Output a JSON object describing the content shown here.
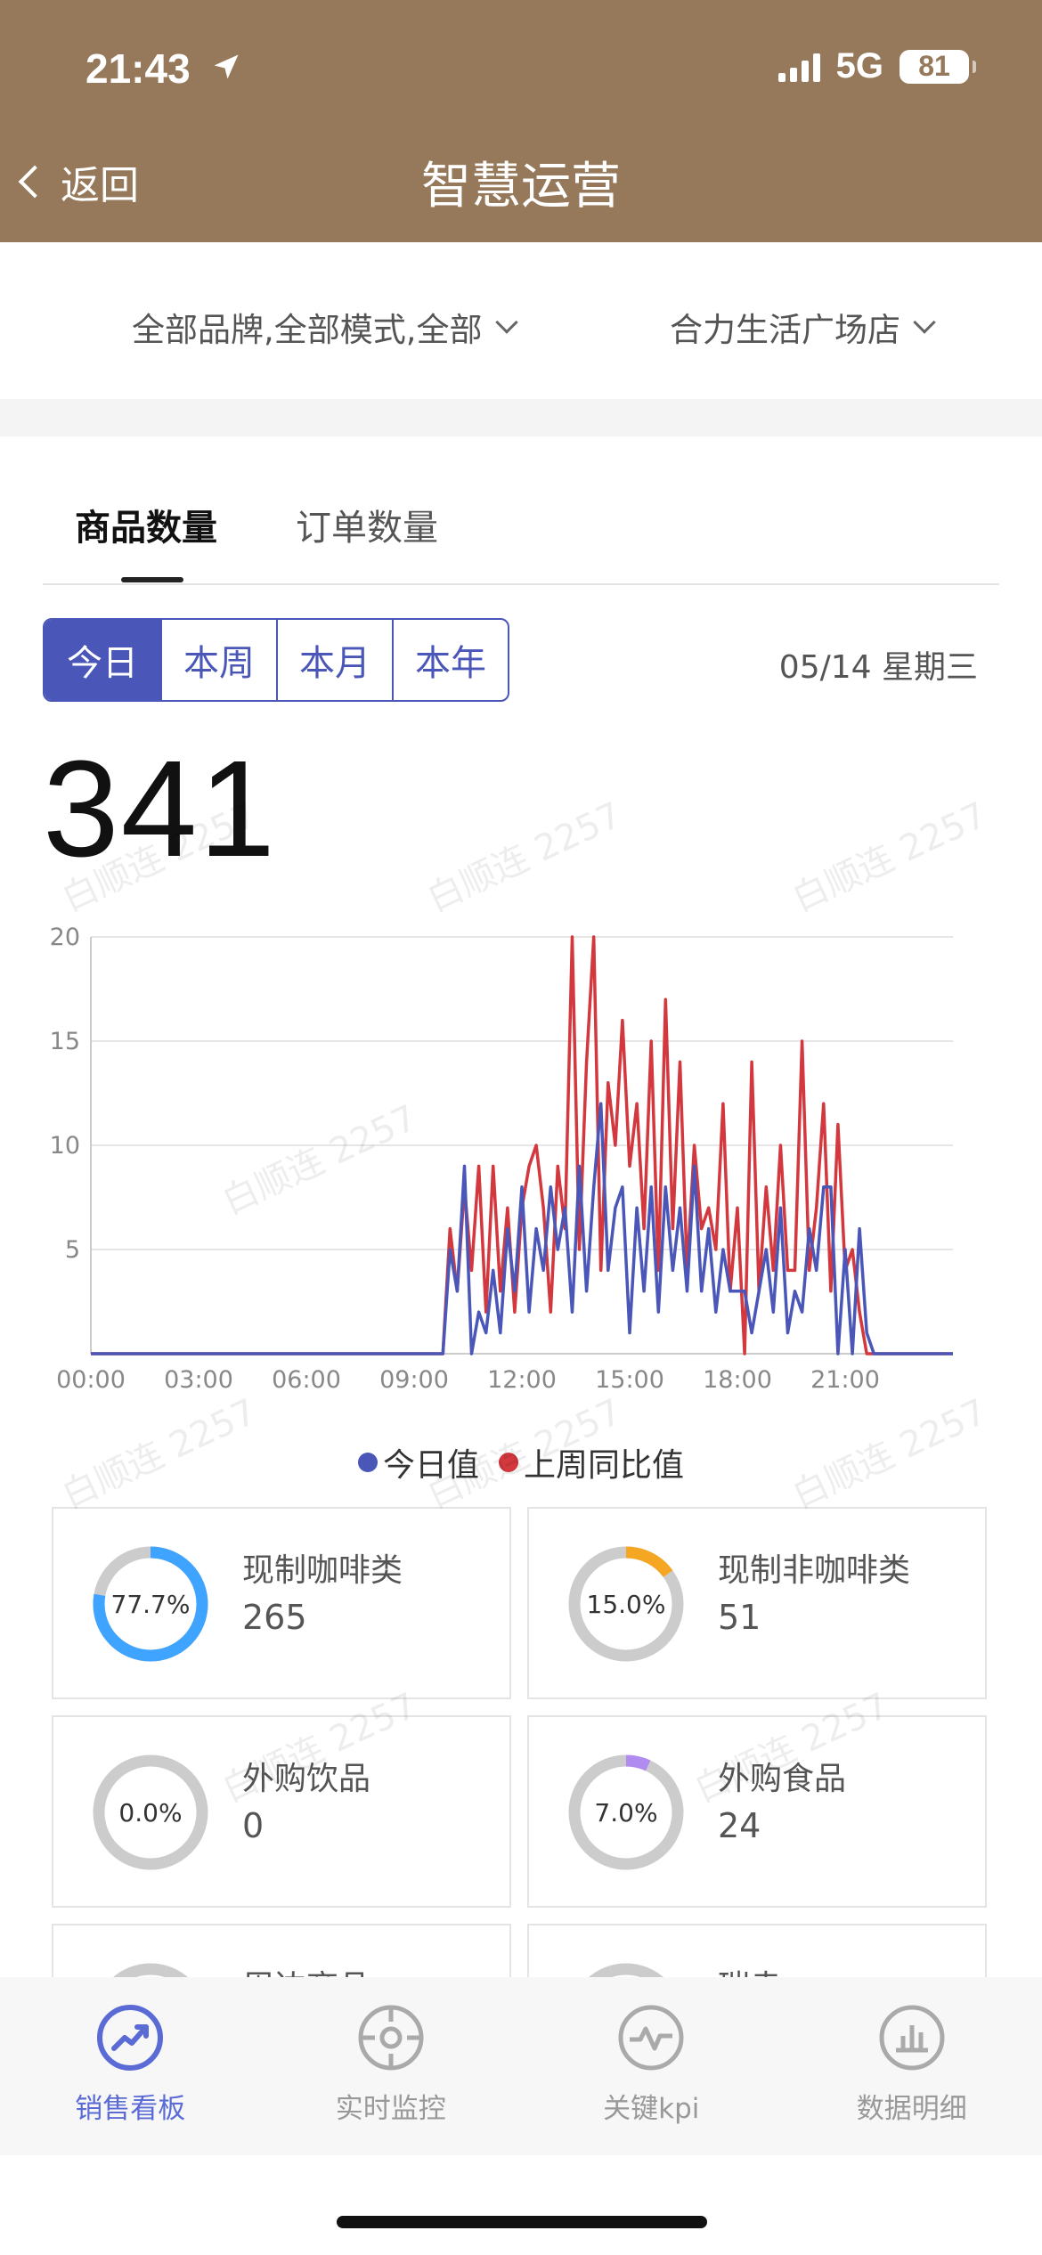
{
  "status_bar": {
    "time": "21:43",
    "network": "5G",
    "battery": "81"
  },
  "header": {
    "back_label": "返回",
    "title": "智慧运营"
  },
  "filters": {
    "brand_mode": "全部品牌,全部模式,全部",
    "store": "合力生活广场店"
  },
  "tabs": [
    {
      "label": "商品数量",
      "active": true
    },
    {
      "label": "订单数量",
      "active": false
    }
  ],
  "periods": [
    "今日",
    "本周",
    "本月",
    "本年"
  ],
  "selected_period": "今日",
  "date_label": "05/14 星期三",
  "total": "341",
  "legend": {
    "today": "今日值",
    "last_week": "上周同比值"
  },
  "watermark": "白顺连 2257",
  "colors": {
    "header": "#96785a",
    "accent": "#4a57b8",
    "today": "#4a57b8",
    "last_week": "#d2383e",
    "coffee": "#3fa4ff",
    "non_coffee": "#f5a623",
    "food": "#b08cf0",
    "ring_bg": "#cccccc"
  },
  "chart_data": {
    "type": "line",
    "x_ticks": [
      "00:00",
      "03:00",
      "06:00",
      "09:00",
      "12:00",
      "15:00",
      "18:00",
      "21:00"
    ],
    "y_ticks": [
      5,
      10,
      15,
      20
    ],
    "ylim": [
      0,
      20
    ],
    "x_range_hours": [
      0,
      24
    ],
    "series": [
      {
        "name": "今日值",
        "color": "#4a57b8",
        "points": [
          [
            0,
            0
          ],
          [
            9.8,
            0
          ],
          [
            10.0,
            5
          ],
          [
            10.2,
            3
          ],
          [
            10.4,
            9
          ],
          [
            10.6,
            0
          ],
          [
            10.8,
            2
          ],
          [
            11.0,
            1
          ],
          [
            11.2,
            4
          ],
          [
            11.4,
            1
          ],
          [
            11.6,
            6
          ],
          [
            11.8,
            3
          ],
          [
            12.0,
            8
          ],
          [
            12.2,
            2
          ],
          [
            12.4,
            6
          ],
          [
            12.6,
            4
          ],
          [
            12.8,
            8
          ],
          [
            13.0,
            5
          ],
          [
            13.2,
            7
          ],
          [
            13.4,
            2
          ],
          [
            13.6,
            9
          ],
          [
            13.8,
            3
          ],
          [
            14.0,
            8
          ],
          [
            14.2,
            12
          ],
          [
            14.4,
            4
          ],
          [
            14.6,
            7
          ],
          [
            14.8,
            8
          ],
          [
            15.0,
            1
          ],
          [
            15.2,
            7
          ],
          [
            15.4,
            3
          ],
          [
            15.6,
            8
          ],
          [
            15.8,
            2
          ],
          [
            16.0,
            8
          ],
          [
            16.2,
            4
          ],
          [
            16.4,
            7
          ],
          [
            16.6,
            3
          ],
          [
            16.8,
            9
          ],
          [
            17.0,
            3
          ],
          [
            17.2,
            6
          ],
          [
            17.4,
            2
          ],
          [
            17.6,
            5
          ],
          [
            17.8,
            3
          ],
          [
            18.0,
            3
          ],
          [
            18.2,
            3
          ],
          [
            18.4,
            1
          ],
          [
            18.6,
            3
          ],
          [
            18.8,
            5
          ],
          [
            19.0,
            2
          ],
          [
            19.2,
            7
          ],
          [
            19.4,
            1
          ],
          [
            19.6,
            3
          ],
          [
            19.8,
            2
          ],
          [
            20.0,
            6
          ],
          [
            20.2,
            4
          ],
          [
            20.4,
            8
          ],
          [
            20.6,
            8
          ],
          [
            20.8,
            0
          ],
          [
            21.0,
            5
          ],
          [
            21.2,
            0
          ],
          [
            21.4,
            6
          ],
          [
            21.6,
            1
          ],
          [
            21.8,
            0
          ],
          [
            24,
            0
          ]
        ]
      },
      {
        "name": "上周同比值",
        "color": "#d2383e",
        "points": [
          [
            0,
            0
          ],
          [
            9.8,
            0
          ],
          [
            10.0,
            6
          ],
          [
            10.2,
            3
          ],
          [
            10.4,
            8
          ],
          [
            10.6,
            4
          ],
          [
            10.8,
            9
          ],
          [
            11.0,
            2
          ],
          [
            11.2,
            9
          ],
          [
            11.4,
            3
          ],
          [
            11.6,
            7
          ],
          [
            11.8,
            2
          ],
          [
            12.0,
            7
          ],
          [
            12.2,
            9
          ],
          [
            12.4,
            10
          ],
          [
            12.6,
            7
          ],
          [
            12.8,
            2
          ],
          [
            13.0,
            9
          ],
          [
            13.2,
            6
          ],
          [
            13.4,
            20
          ],
          [
            13.6,
            5
          ],
          [
            13.8,
            14
          ],
          [
            14.0,
            20
          ],
          [
            14.2,
            4
          ],
          [
            14.4,
            13
          ],
          [
            14.6,
            10
          ],
          [
            14.8,
            16
          ],
          [
            15.0,
            9
          ],
          [
            15.2,
            12
          ],
          [
            15.4,
            6
          ],
          [
            15.6,
            15
          ],
          [
            15.8,
            4
          ],
          [
            16.0,
            17
          ],
          [
            16.2,
            6
          ],
          [
            16.4,
            14
          ],
          [
            16.6,
            4
          ],
          [
            16.8,
            10
          ],
          [
            17.0,
            6
          ],
          [
            17.2,
            7
          ],
          [
            17.4,
            5
          ],
          [
            17.6,
            12
          ],
          [
            17.8,
            3
          ],
          [
            18.0,
            7
          ],
          [
            18.2,
            0
          ],
          [
            18.4,
            14
          ],
          [
            18.6,
            3
          ],
          [
            18.8,
            8
          ],
          [
            19.0,
            4
          ],
          [
            19.2,
            10
          ],
          [
            19.4,
            4
          ],
          [
            19.6,
            4
          ],
          [
            19.8,
            15
          ],
          [
            20.0,
            4
          ],
          [
            20.2,
            7
          ],
          [
            20.4,
            12
          ],
          [
            20.6,
            3
          ],
          [
            20.8,
            11
          ],
          [
            21.0,
            4
          ],
          [
            21.2,
            5
          ],
          [
            21.4,
            2
          ],
          [
            21.6,
            0
          ],
          [
            24,
            0
          ]
        ]
      }
    ]
  },
  "categories": [
    {
      "name": "现制咖啡类",
      "value": "265",
      "percent_label": "77.7%",
      "percent": 77.7,
      "color": "#3fa4ff"
    },
    {
      "name": "现制非咖啡类",
      "value": "51",
      "percent_label": "15.0%",
      "percent": 15.0,
      "color": "#f5a623"
    },
    {
      "name": "外购饮品",
      "value": "0",
      "percent_label": "0.0%",
      "percent": 0.0,
      "color": "#cccccc"
    },
    {
      "name": "外购食品",
      "value": "24",
      "percent_label": "7.0%",
      "percent": 7.0,
      "color": "#b08cf0"
    },
    {
      "name": "周边商品",
      "value": "",
      "percent_label": "",
      "percent": 0,
      "color": "#cccccc"
    },
    {
      "name": "瑞幸... ",
      "value": "",
      "percent_label": "",
      "percent": 0,
      "color": "#cccccc"
    }
  ],
  "bottom_nav": [
    {
      "label": "销售看板",
      "icon": "trend-icon",
      "active": true
    },
    {
      "label": "实时监控",
      "icon": "target-icon",
      "active": false
    },
    {
      "label": "关键kpi",
      "icon": "pulse-icon",
      "active": false
    },
    {
      "label": "数据明细",
      "icon": "bar-chart-icon",
      "active": false
    }
  ]
}
